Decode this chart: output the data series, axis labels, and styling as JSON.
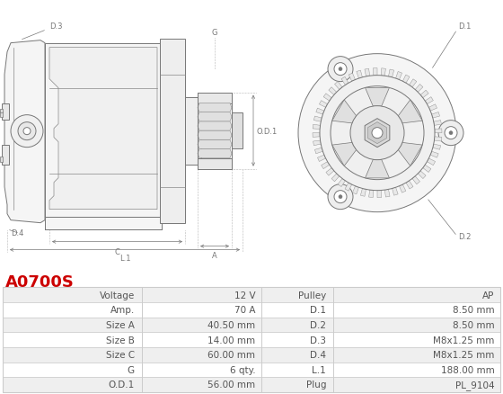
{
  "title": "A0700S",
  "title_color": "#cc0000",
  "bg_color": "#ffffff",
  "table_rows": [
    [
      "Voltage",
      "12 V",
      "Pulley",
      "AP"
    ],
    [
      "Amp.",
      "70 A",
      "D.1",
      "8.50 mm"
    ],
    [
      "Size A",
      "40.50 mm",
      "D.2",
      "8.50 mm"
    ],
    [
      "Size B",
      "14.00 mm",
      "D.3",
      "M8x1.25 mm"
    ],
    [
      "Size C",
      "60.00 mm",
      "D.4",
      "M8x1.25 mm"
    ],
    [
      "G",
      "6 qty.",
      "L.1",
      "188.00 mm"
    ],
    [
      "O.D.1",
      "56.00 mm",
      "Plug",
      "PL_9104"
    ]
  ],
  "cell_text_color": "#555555",
  "border_color": "#cccccc",
  "row_bg_odd": "#efefef",
  "row_bg_even": "#ffffff",
  "font_size": 7.5,
  "dim_color": "#777777",
  "line_color": "#888888",
  "body_fill": "#f8f8f8",
  "body_edge": "#777777"
}
